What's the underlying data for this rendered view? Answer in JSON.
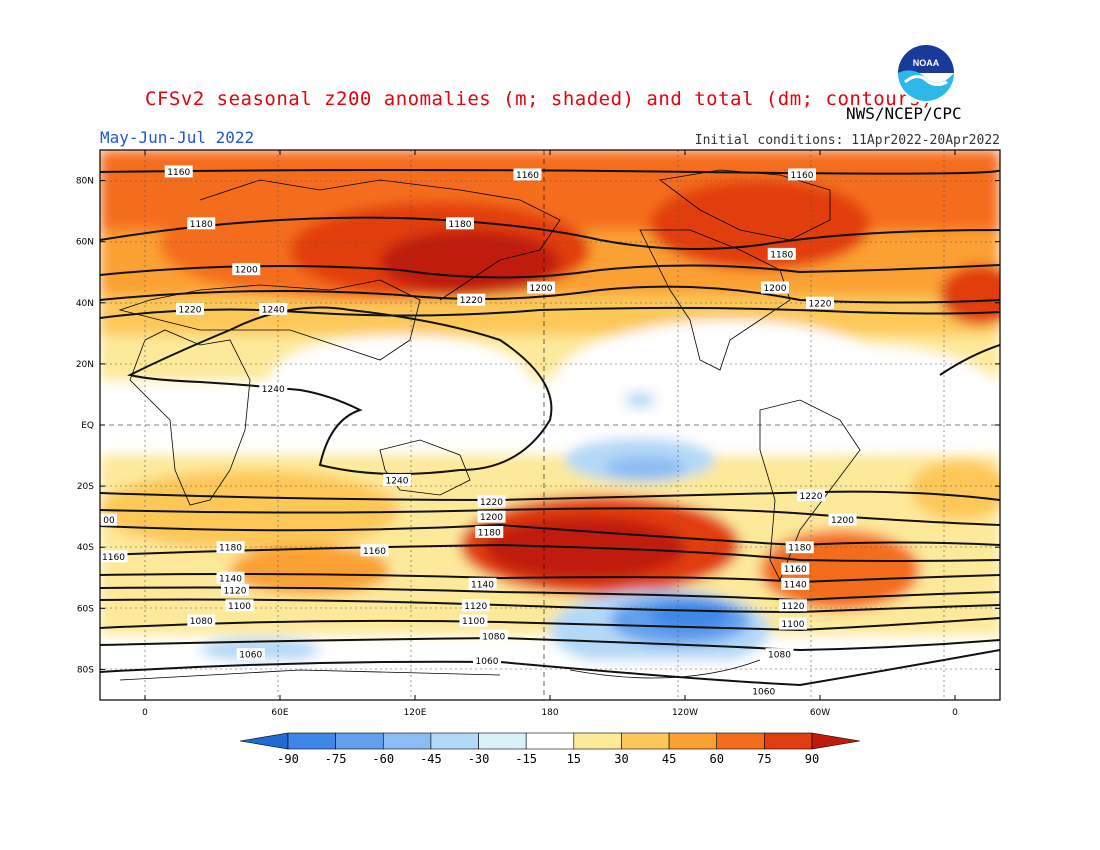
{
  "header": {
    "title": "CFSv2 seasonal z200 anomalies (m; shaded) and total (dm; contours)",
    "period": "May-Jun-Jul 2022",
    "agency": "NWS/NCEP/CPC",
    "initial_conditions": "Initial conditions: 11Apr2022-20Apr2022"
  },
  "logo": {
    "icon": "noaa-logo",
    "text": "NOAA"
  },
  "map": {
    "projection": "equirectangular",
    "lon_range": [
      -20,
      380
    ],
    "lat_range": [
      -90,
      90
    ],
    "lat_ticks": [
      "80N",
      "60N",
      "40N",
      "20N",
      "EQ",
      "20S",
      "40S",
      "60S",
      "80S"
    ],
    "lon_ticks": [
      "0",
      "60E",
      "120E",
      "180",
      "120W",
      "60W",
      "0"
    ]
  },
  "contour_labels": [
    {
      "text": "1160",
      "lon": 15,
      "lat": 83
    },
    {
      "text": "1160",
      "lon": 170,
      "lat": 82
    },
    {
      "text": "1160",
      "lon": 292,
      "lat": 82
    },
    {
      "text": "1180",
      "lon": 25,
      "lat": 66
    },
    {
      "text": "1180",
      "lon": 140,
      "lat": 66
    },
    {
      "text": "1180",
      "lon": 283,
      "lat": 56
    },
    {
      "text": "1200",
      "lon": 45,
      "lat": 51
    },
    {
      "text": "1200",
      "lon": 176,
      "lat": 45
    },
    {
      "text": "1200",
      "lon": 280,
      "lat": 45
    },
    {
      "text": "1220",
      "lon": 20,
      "lat": 38
    },
    {
      "text": "1240",
      "lon": 57,
      "lat": 38
    },
    {
      "text": "1220",
      "lon": 145,
      "lat": 41
    },
    {
      "text": "1220",
      "lon": 300,
      "lat": 40
    },
    {
      "text": "1240",
      "lon": 57,
      "lat": 12
    },
    {
      "text": "1240",
      "lon": 112,
      "lat": -18
    },
    {
      "text": "1220",
      "lon": 154,
      "lat": -25
    },
    {
      "text": "1220",
      "lon": 296,
      "lat": -23
    },
    {
      "text": "1200",
      "lon": 154,
      "lat": -30
    },
    {
      "text": "1200",
      "lon": 310,
      "lat": -31
    },
    {
      "text": "1180",
      "lon": 153,
      "lat": -35
    },
    {
      "text": "1180",
      "lon": 38,
      "lat": -40
    },
    {
      "text": "1180",
      "lon": 291,
      "lat": -40
    },
    {
      "text": "1160",
      "lon": 102,
      "lat": -41
    },
    {
      "text": "1160",
      "lon": -14,
      "lat": -43
    },
    {
      "text": "1160",
      "lon": 289,
      "lat": -47
    },
    {
      "text": "1140",
      "lon": 38,
      "lat": -50
    },
    {
      "text": "1140",
      "lon": 150,
      "lat": -52
    },
    {
      "text": "1140",
      "lon": 289,
      "lat": -52
    },
    {
      "text": "1120",
      "lon": 40,
      "lat": -54
    },
    {
      "text": "1120",
      "lon": 147,
      "lat": -59
    },
    {
      "text": "1120",
      "lon": 288,
      "lat": -59
    },
    {
      "text": "1100",
      "lon": 42,
      "lat": -59
    },
    {
      "text": "1100",
      "lon": 146,
      "lat": -64
    },
    {
      "text": "1100",
      "lon": 288,
      "lat": -65
    },
    {
      "text": "1080",
      "lon": 25,
      "lat": -64
    },
    {
      "text": "1080",
      "lon": 155,
      "lat": -69
    },
    {
      "text": "1080",
      "lon": 282,
      "lat": -75
    },
    {
      "text": "1060",
      "lon": 47,
      "lat": -75
    },
    {
      "text": "1060",
      "lon": 152,
      "lat": -77
    },
    {
      "text": "1060",
      "lon": 275,
      "lat": -87
    },
    {
      "text": "00",
      "lon": -16,
      "lat": -31
    }
  ],
  "colorbar": {
    "labels": [
      "-90",
      "-75",
      "-60",
      "-45",
      "-30",
      "-15",
      "15",
      "30",
      "45",
      "60",
      "75",
      "90"
    ],
    "colors": [
      "#1e6bd6",
      "#3f87e6",
      "#62a0ee",
      "#8cbcf4",
      "#b4d8f7",
      "#d8f0f8",
      "#ffffff",
      "#fde99a",
      "#fdc858",
      "#fba033",
      "#f46d1d",
      "#e23d10",
      "#c01b0a"
    ]
  }
}
